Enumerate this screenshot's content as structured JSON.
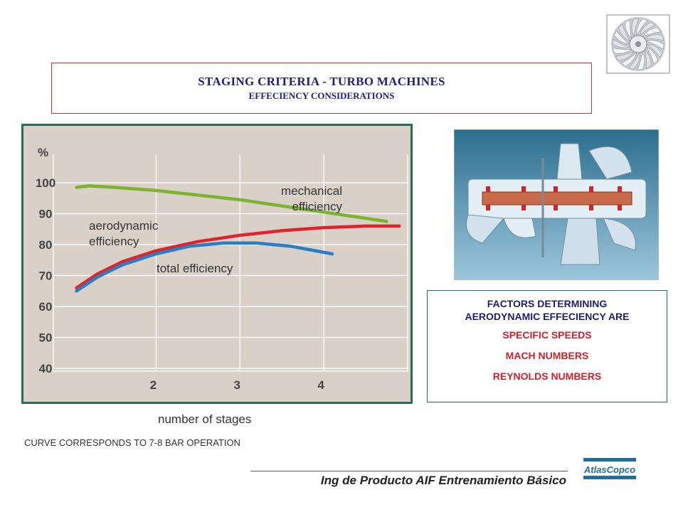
{
  "title": {
    "main": "STAGING CRITERIA - TURBO MACHINES",
    "sub": "EFFECIENCY CONSIDERATIONS"
  },
  "chart_data": {
    "type": "line",
    "title": "",
    "xlabel": "number of stages",
    "ylabel": "%",
    "xlim": [
      1,
      5
    ],
    "ylim": [
      40,
      100
    ],
    "x_ticks": [
      "2",
      "3",
      "4"
    ],
    "y_ticks": [
      "40",
      "50",
      "60",
      "70",
      "80",
      "90",
      "100"
    ],
    "grid": true,
    "series": [
      {
        "name": "mechanical efficiency",
        "color": "#7db32e",
        "x": [
          1.05,
          1.2,
          1.5,
          2.0,
          2.5,
          3.0,
          3.5,
          4.0,
          4.5,
          4.75
        ],
        "y": [
          98.5,
          99,
          98.5,
          97.5,
          96,
          94.5,
          92.5,
          90.5,
          88.5,
          87.5
        ]
      },
      {
        "name": "aerodynamic efficiency",
        "color": "#e0242c",
        "x": [
          1.05,
          1.3,
          1.6,
          2.0,
          2.5,
          3.0,
          3.5,
          4.0,
          4.5,
          4.9
        ],
        "y": [
          66,
          70.5,
          74.5,
          78,
          81,
          83,
          84.5,
          85.5,
          86,
          86
        ]
      },
      {
        "name": "total efficiency",
        "color": "#2a7fc4",
        "x": [
          1.05,
          1.3,
          1.6,
          2.0,
          2.4,
          2.8,
          3.2,
          3.6,
          3.8,
          4.1
        ],
        "y": [
          65,
          69.5,
          73.5,
          77,
          79.5,
          80.5,
          80.5,
          79.5,
          78.5,
          77
        ]
      }
    ],
    "annotations": [
      {
        "lines": [
          "mechanical",
          "efficiency"
        ],
        "series": "mechanical efficiency"
      },
      {
        "lines": [
          "aerodynamic",
          "efficiency"
        ],
        "series": "aerodynamic efficiency"
      },
      {
        "lines": [
          "total efficiency"
        ],
        "series": "total efficiency"
      }
    ]
  },
  "note": "CURVE CORRESPONDS TO 7-8 BAR OPERATION",
  "factors": {
    "heading_line1": "FACTORS DETERMINING",
    "heading_line2": "AERODYNAMIC EFFECIENCY ARE",
    "items": [
      "SPECIFIC SPEEDS",
      "MACH NUMBERS",
      "REYNOLDS NUMBERS"
    ]
  },
  "footer": {
    "text": "Ing de Producto AIF Entrenamiento Básico"
  },
  "logo": {
    "text": "AtlasCopco"
  }
}
